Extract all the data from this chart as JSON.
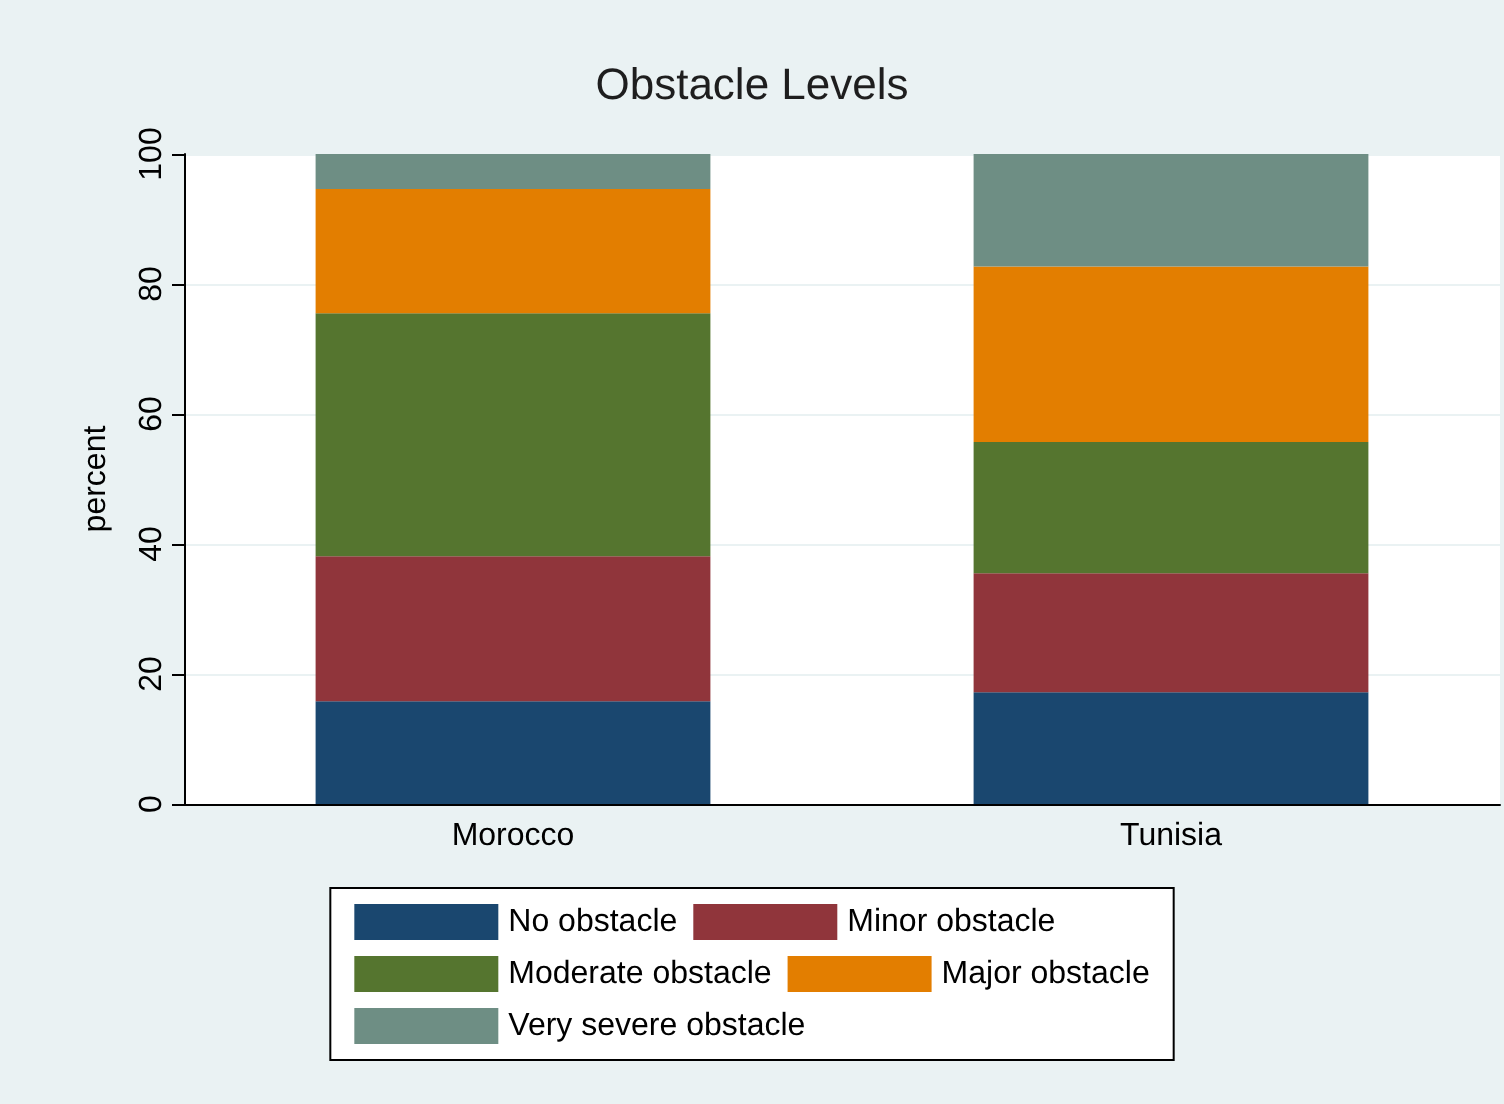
{
  "chart_data": {
    "type": "bar",
    "title": "Obstacle Levels",
    "ylabel": "percent",
    "categories": [
      "Morocco",
      "Tunisia"
    ],
    "stacked": true,
    "series": [
      {
        "name": "No obstacle",
        "color": "#1a476f",
        "values": [
          15.8,
          17.2
        ]
      },
      {
        "name": "Minor obstacle",
        "color": "#90353b",
        "values": [
          22.3,
          18.3
        ]
      },
      {
        "name": "Moderate obstacle",
        "color": "#55752f",
        "values": [
          37.4,
          20.2
        ]
      },
      {
        "name": "Major obstacle",
        "color": "#e37e00",
        "values": [
          19.1,
          27.0
        ]
      },
      {
        "name": "Very severe obstacle",
        "color": "#6e8e84",
        "values": [
          5.4,
          17.3
        ]
      }
    ],
    "ylim": [
      0,
      100
    ],
    "yticks": [
      0,
      20,
      40,
      60,
      80,
      100
    ],
    "grid": "y",
    "legend": "bottom"
  }
}
